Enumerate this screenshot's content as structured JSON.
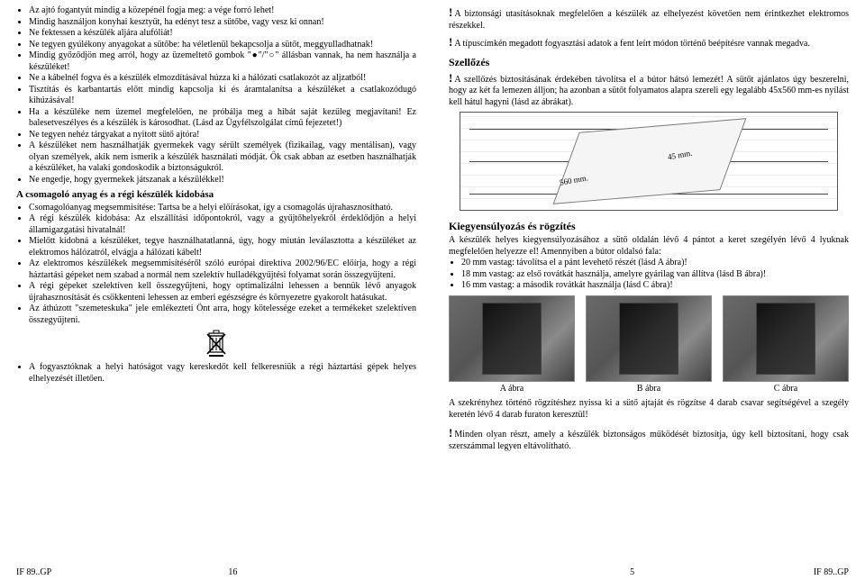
{
  "left": {
    "bullets_top": [
      "Az ajtó fogantyút mindig a közepénél fogja meg: a vége forró lehet!",
      "Mindig használjon konyhai kesztyűt, ha edényt tesz a sütőbe, vagy vesz ki onnan!",
      "Ne fektessen a készülék aljára alufóliát!",
      "Ne tegyen gyúlékony anyagokat a sütőbe: ha véletlenül bekapcsolja a sütőt, meggyulladhatnak!",
      "Mindig győződjön meg arról, hogy az üzemeltető gombok \"●\"/\"○\" állásban vannak, ha nem használja a készüléket!",
      "Ne a kábelnél fogva és a készülék elmozdításával húzza ki a hálózati csatlakozót az aljzatból!",
      "Tisztítás és karbantartás előtt mindig kapcsolja ki és áramtalanítsa a készüléket a csatlakozódugó kihúzásával!",
      "Ha a készüléke nem üzemel megfelelően, ne próbálja meg a hibát saját kezűleg megjavítani! Ez balesetveszélyes és a készülék is károsodhat. (Lásd az Ügyfélszolgálat című fejezetet!)",
      "Ne tegyen nehéz tárgyakat a nyitott sütő ajtóra!",
      "A készüléket nem használhatják gyermekek vagy sérült személyek (fizikailag, vagy mentálisan), vagy olyan személyek, akik nem ismerik a készülék használati módját. Ők csak abban az esetben használhatják a készüléket, ha valaki gondoskodik a biztonságukról.",
      "Ne engedje, hogy gyermekek játszanak a készülékkel!"
    ],
    "disposal_title": "A csomagoló anyag és a régi készülék kidobása",
    "bullets_disposal": [
      "Csomagolóanyag megsemmisítése: Tartsa be a helyi előírásokat, így a csomagolás újrahasznosítható.",
      "A régi készülék kidobása: Az elszállítási időpontokról, vagy a gyűjtőhelyekről érdeklődjön a helyi államigazgatási hivatalnál!",
      "Mielőtt kidobná a készüléket, tegye használhatatlanná, úgy, hogy miután leválasztotta a készüléket az elektromos hálózatról, elvágja a hálózati kábelt!",
      "Az elektromos készülékek megsemmisítéséről szóló európai direktíva 2002/96/EC előírja, hogy a régi háztartási gépeket nem szabad a normál nem szelektív hulladékgyűjtési folyamat során összegyűjteni.",
      "A régi gépeket szelektíven kell összegyűjteni, hogy optimalizálni lehessen a bennük lévő anyagok újrahasznosítását és csökkenteni lehessen az emberi egészségre és környezetre gyakorolt hatásukat.",
      "Az áthúzott \"szemeteskuka\" jele emlékezteti Önt arra, hogy kötelessége ezeket a termékeket szelektíven összegyűjteni."
    ],
    "bullets_after_icon": [
      "A fogyasztóknak a helyi hatóságot vagy kereskedőt kell felkeresniük a régi háztartási gépek helyes elhelyezését illetően."
    ],
    "footer_left": "IF 89..GP",
    "footer_page": "16"
  },
  "right": {
    "warn1": "A biztonsági utasításoknak megfelelően a készülék az elhelyezést követően nem érintkezhet elektromos részekkel.",
    "warn2": "A típuscímkén megadott fogyasztási adatok a fent leírt módon történő beépítésre vannak megadva.",
    "vent_title": "Szellőzés",
    "vent_body": "A szellőzés biztosításának érdekében távolítsa el a bútor hátsó lemezét! A sütőt ajánlatos úgy beszerelni, hogy az két fa lemezen álljon; ha azonban a sütőt folyamatos alapra szereli egy legalább 45x560 mm-es nyílást kell hátul hagyni (lásd az ábrákat).",
    "diagram_dim1": "560 mm.",
    "diagram_dim2": "45 mm.",
    "balance_title": "Kiegyensúlyozás és rögzítés",
    "balance_body": "A készülék helyes kiegyensúlyozásához a sütő oldalán lévő 4 pántot a keret szegélyén lévő 4 lyuknak megfelelően helyezze el! Amennyiben a bútor oldalsó fala:",
    "balance_bullets": [
      "20 mm vastag: távolítsa el a pánt levehető részét (lásd A ábra)!",
      "18 mm vastag: az első rovátkát használja, amelyre gyárilag van állítva (lásd B ábra)!",
      "16 mm vastag: a második rovátkát használja (lásd C ábra)!"
    ],
    "fig_captions": [
      "A ábra",
      "B ábra",
      "C ábra"
    ],
    "after_figs": "A szekrényhez történő rögzítéshez nyissa ki a sütő ajtaját és rögzítse 4 darab csavar segítségével a szegély keretén lévő 4 darab furaton keresztül!",
    "warn3": "Minden olyan részt, amely a készülék biztonságos működését biztosítja, úgy kell biztosítani, hogy csak szerszámmal legyen eltávolítható.",
    "footer_left": "IF 89..GP",
    "footer_page": "5"
  },
  "colors": {
    "text": "#000000",
    "bg": "#ffffff",
    "border": "#555555"
  }
}
